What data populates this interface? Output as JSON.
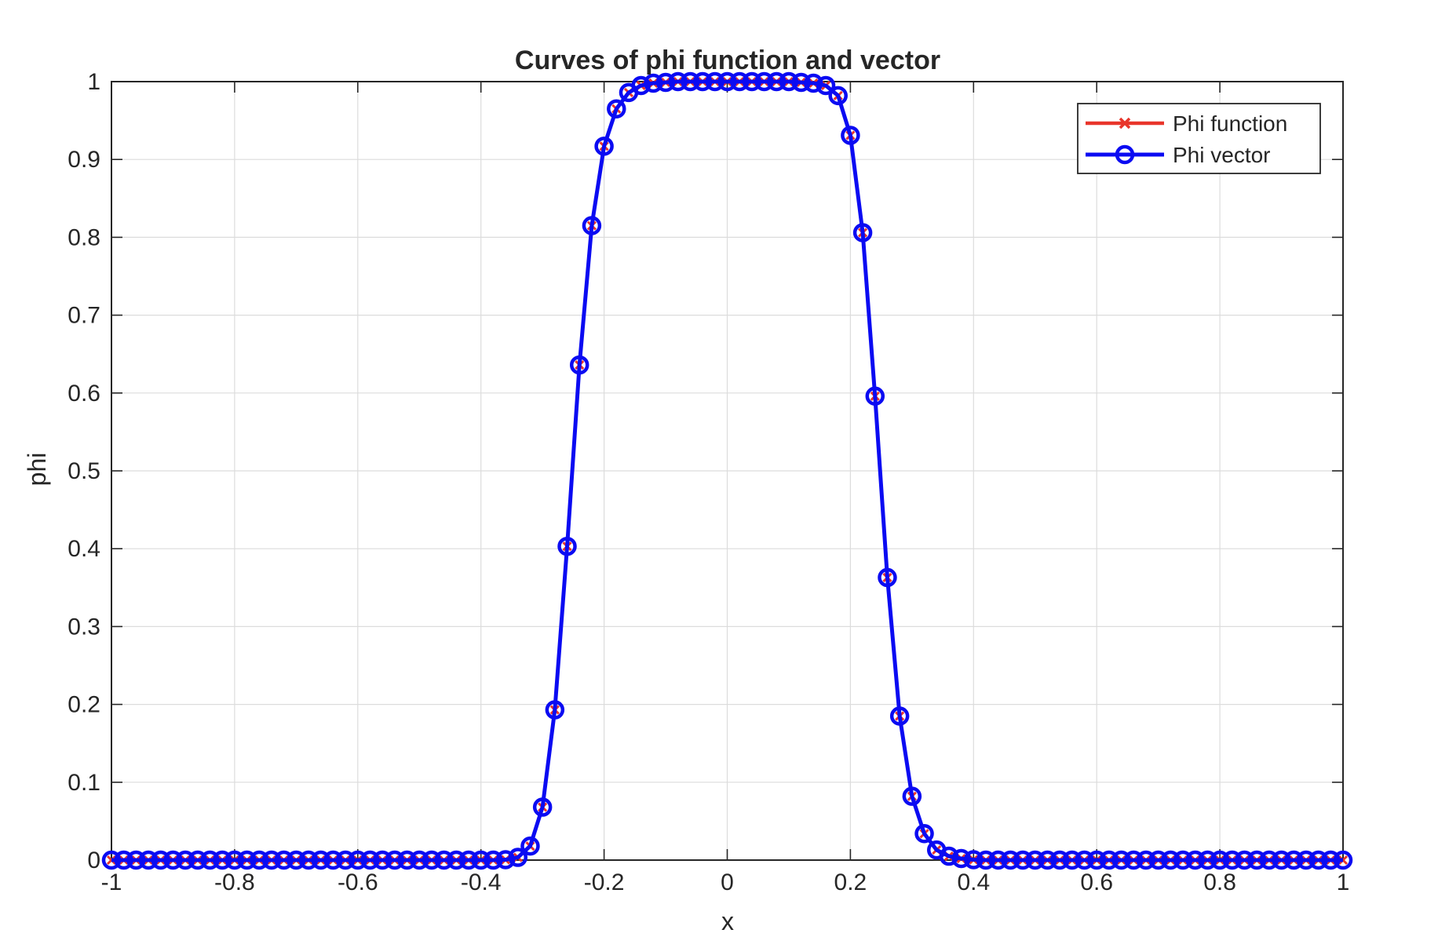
{
  "chart_data": {
    "type": "line",
    "title": "Curves of phi function and vector",
    "xlabel": "x",
    "ylabel": "phi",
    "xlim": [
      -1,
      1
    ],
    "ylim": [
      0,
      1
    ],
    "xticks": [
      -1,
      -0.8,
      -0.6,
      -0.4,
      -0.2,
      0,
      0.2,
      0.4,
      0.6,
      0.8,
      1
    ],
    "xtick_labels": [
      "-1",
      "-0.8",
      "-0.6",
      "-0.4",
      "-0.2",
      "0",
      "0.2",
      "0.4",
      "0.6",
      "0.8",
      "1"
    ],
    "yticks": [
      0,
      0.1,
      0.2,
      0.3,
      0.4,
      0.5,
      0.6,
      0.7,
      0.8,
      0.9,
      1
    ],
    "ytick_labels": [
      "0",
      "0.1",
      "0.2",
      "0.3",
      "0.4",
      "0.5",
      "0.6",
      "0.7",
      "0.8",
      "0.9",
      "1"
    ],
    "grid": true,
    "legend_position": "top-right",
    "x": [
      -1.0,
      -0.98,
      -0.96,
      -0.94,
      -0.92,
      -0.9,
      -0.88,
      -0.86,
      -0.84,
      -0.82,
      -0.8,
      -0.78,
      -0.76,
      -0.74,
      -0.72,
      -0.7,
      -0.68,
      -0.66,
      -0.64,
      -0.62,
      -0.6,
      -0.58,
      -0.56,
      -0.54,
      -0.52,
      -0.5,
      -0.48,
      -0.46,
      -0.44,
      -0.42,
      -0.4,
      -0.38,
      -0.36,
      -0.34,
      -0.32,
      -0.3,
      -0.28,
      -0.26,
      -0.24,
      -0.22,
      -0.2,
      -0.18,
      -0.16,
      -0.14,
      -0.12,
      -0.1,
      -0.08,
      -0.06,
      -0.04,
      -0.02,
      0.0,
      0.02,
      0.04,
      0.06,
      0.08,
      0.1,
      0.12,
      0.14,
      0.16,
      0.18,
      0.2,
      0.22,
      0.24,
      0.26,
      0.28,
      0.3,
      0.32,
      0.34,
      0.36,
      0.38,
      0.4,
      0.42,
      0.44,
      0.46,
      0.48,
      0.5,
      0.52,
      0.54,
      0.56,
      0.58,
      0.6,
      0.62,
      0.64,
      0.66,
      0.68,
      0.7,
      0.72,
      0.74,
      0.76,
      0.78,
      0.8,
      0.82,
      0.84,
      0.86,
      0.88,
      0.9,
      0.92,
      0.94,
      0.96,
      0.98,
      1.0
    ],
    "series": [
      {
        "name": "Phi function",
        "color": "#e8352a",
        "marker": "x",
        "values": [
          0,
          0,
          0,
          0,
          0,
          0,
          0,
          0,
          0,
          0,
          0,
          0,
          0,
          0,
          0,
          0,
          0,
          0,
          0,
          0,
          0,
          0,
          0,
          0,
          0,
          0,
          0,
          0,
          0,
          0,
          0,
          0,
          0.0005,
          0.0035,
          0.018,
          0.068,
          0.193,
          0.403,
          0.636,
          0.815,
          0.917,
          0.965,
          0.986,
          0.995,
          0.998,
          0.999,
          1,
          1,
          1,
          1,
          1,
          1,
          1,
          1,
          1,
          1,
          0.999,
          0.998,
          0.995,
          0.982,
          0.931,
          0.806,
          0.596,
          0.363,
          0.185,
          0.082,
          0.034,
          0.013,
          0.005,
          0.002,
          0.0005,
          0,
          0,
          0,
          0,
          0,
          0,
          0,
          0,
          0,
          0,
          0,
          0,
          0,
          0,
          0,
          0,
          0,
          0,
          0,
          0,
          0,
          0,
          0,
          0,
          0,
          0,
          0,
          0,
          0,
          0
        ]
      },
      {
        "name": "Phi vector",
        "color": "#0b0bf2",
        "marker": "o",
        "values": [
          0,
          0,
          0,
          0,
          0,
          0,
          0,
          0,
          0,
          0,
          0,
          0,
          0,
          0,
          0,
          0,
          0,
          0,
          0,
          0,
          0,
          0,
          0,
          0,
          0,
          0,
          0,
          0,
          0,
          0,
          0,
          0,
          0.0005,
          0.0035,
          0.018,
          0.068,
          0.193,
          0.403,
          0.636,
          0.815,
          0.917,
          0.965,
          0.986,
          0.995,
          0.998,
          0.999,
          1,
          1,
          1,
          1,
          1,
          1,
          1,
          1,
          1,
          1,
          0.999,
          0.998,
          0.995,
          0.982,
          0.931,
          0.806,
          0.596,
          0.363,
          0.185,
          0.082,
          0.034,
          0.013,
          0.005,
          0.002,
          0.0005,
          0,
          0,
          0,
          0,
          0,
          0,
          0,
          0,
          0,
          0,
          0,
          0,
          0,
          0,
          0,
          0,
          0,
          0,
          0,
          0,
          0,
          0,
          0,
          0,
          0,
          0,
          0,
          0,
          0,
          0
        ]
      }
    ]
  }
}
